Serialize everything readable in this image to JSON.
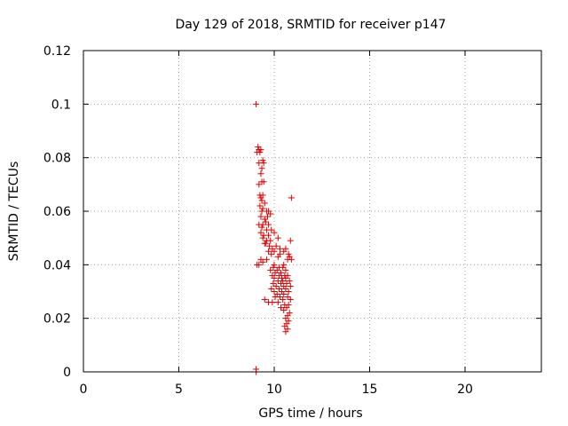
{
  "chart_data": {
    "type": "scatter",
    "title": "Day 129 of 2018, SRMTID for receiver p147",
    "xlabel": "GPS time / hours",
    "ylabel": "SRMTID / TECUs",
    "xlim": [
      0,
      24
    ],
    "ylim": [
      0,
      0.12
    ],
    "xticks": [
      0,
      5,
      10,
      15,
      20
    ],
    "xtick_labels": [
      "0",
      "5",
      "10",
      "15",
      "20"
    ],
    "yticks": [
      0,
      0.02,
      0.04,
      0.06,
      0.08,
      0.1,
      0.12
    ],
    "ytick_labels": [
      "0",
      "0.02",
      "0.04",
      "0.06",
      "0.08",
      "0.1",
      "0.12"
    ],
    "grid": true,
    "marker": "plus",
    "marker_color": "#e00000",
    "series": [
      {
        "name": "SRMTID",
        "points": [
          [
            9.05,
            0.1
          ],
          [
            9.15,
            0.084
          ],
          [
            9.2,
            0.083
          ],
          [
            9.3,
            0.083
          ],
          [
            9.25,
            0.082
          ],
          [
            9.1,
            0.082
          ],
          [
            9.4,
            0.079
          ],
          [
            9.2,
            0.078
          ],
          [
            9.45,
            0.078
          ],
          [
            9.35,
            0.076
          ],
          [
            9.3,
            0.074
          ],
          [
            9.35,
            0.071
          ],
          [
            9.45,
            0.071
          ],
          [
            9.2,
            0.07
          ],
          [
            9.25,
            0.066
          ],
          [
            9.4,
            0.066
          ],
          [
            9.3,
            0.065
          ],
          [
            9.35,
            0.064
          ],
          [
            9.5,
            0.063
          ],
          [
            9.25,
            0.062
          ],
          [
            9.4,
            0.061
          ],
          [
            9.35,
            0.06
          ],
          [
            9.6,
            0.06
          ],
          [
            9.7,
            0.06
          ],
          [
            9.8,
            0.059
          ],
          [
            9.65,
            0.058
          ],
          [
            9.3,
            0.058
          ],
          [
            9.5,
            0.057
          ],
          [
            9.55,
            0.056
          ],
          [
            9.2,
            0.055
          ],
          [
            9.4,
            0.055
          ],
          [
            9.7,
            0.055
          ],
          [
            9.35,
            0.054
          ],
          [
            9.6,
            0.053
          ],
          [
            9.85,
            0.053
          ],
          [
            10.0,
            0.052
          ],
          [
            9.3,
            0.052
          ],
          [
            9.45,
            0.051
          ],
          [
            9.7,
            0.051
          ],
          [
            10.2,
            0.05
          ],
          [
            9.4,
            0.05
          ],
          [
            9.6,
            0.049
          ],
          [
            9.8,
            0.049
          ],
          [
            10.85,
            0.049
          ],
          [
            9.5,
            0.048
          ],
          [
            9.55,
            0.048
          ],
          [
            9.75,
            0.047
          ],
          [
            10.1,
            0.047
          ],
          [
            9.9,
            0.046
          ],
          [
            10.3,
            0.046
          ],
          [
            10.6,
            0.046
          ],
          [
            9.7,
            0.045
          ],
          [
            10.0,
            0.045
          ],
          [
            10.5,
            0.045
          ],
          [
            9.85,
            0.044
          ],
          [
            10.3,
            0.044
          ],
          [
            10.75,
            0.044
          ],
          [
            10.8,
            0.043
          ],
          [
            10.2,
            0.043
          ],
          [
            9.6,
            0.042
          ],
          [
            9.3,
            0.042
          ],
          [
            10.7,
            0.042
          ],
          [
            10.9,
            0.042
          ],
          [
            9.4,
            0.041
          ],
          [
            9.1,
            0.04
          ],
          [
            9.2,
            0.04
          ],
          [
            10.5,
            0.04
          ],
          [
            10.0,
            0.04
          ],
          [
            10.25,
            0.039
          ],
          [
            10.45,
            0.039
          ],
          [
            9.95,
            0.039
          ],
          [
            9.8,
            0.038
          ],
          [
            10.15,
            0.038
          ],
          [
            10.6,
            0.038
          ],
          [
            10.35,
            0.037
          ],
          [
            10.05,
            0.037
          ],
          [
            10.55,
            0.036
          ],
          [
            9.9,
            0.036
          ],
          [
            10.25,
            0.036
          ],
          [
            10.7,
            0.036
          ],
          [
            10.4,
            0.035
          ],
          [
            10.0,
            0.035
          ],
          [
            10.6,
            0.035
          ],
          [
            10.2,
            0.034
          ],
          [
            10.45,
            0.034
          ],
          [
            10.8,
            0.034
          ],
          [
            9.95,
            0.033
          ],
          [
            10.35,
            0.033
          ],
          [
            10.65,
            0.033
          ],
          [
            10.1,
            0.032
          ],
          [
            10.5,
            0.032
          ],
          [
            10.85,
            0.032
          ],
          [
            9.85,
            0.031
          ],
          [
            10.25,
            0.031
          ],
          [
            10.6,
            0.031
          ],
          [
            10.0,
            0.03
          ],
          [
            10.4,
            0.03
          ],
          [
            10.75,
            0.03
          ],
          [
            10.15,
            0.029
          ],
          [
            10.5,
            0.029
          ],
          [
            10.3,
            0.028
          ],
          [
            10.7,
            0.028
          ],
          [
            10.05,
            0.028
          ],
          [
            10.45,
            0.027
          ],
          [
            10.85,
            0.027
          ],
          [
            9.5,
            0.027
          ],
          [
            9.7,
            0.026
          ],
          [
            9.9,
            0.026
          ],
          [
            10.2,
            0.026
          ],
          [
            10.55,
            0.025
          ],
          [
            10.75,
            0.025
          ],
          [
            10.35,
            0.024
          ],
          [
            10.65,
            0.024
          ],
          [
            10.5,
            0.023
          ],
          [
            10.8,
            0.022
          ],
          [
            10.7,
            0.021
          ],
          [
            10.6,
            0.02
          ],
          [
            10.75,
            0.019
          ],
          [
            10.65,
            0.018
          ],
          [
            10.55,
            0.017
          ],
          [
            10.7,
            0.016
          ],
          [
            10.6,
            0.015
          ],
          [
            10.9,
            0.065
          ],
          [
            9.05,
            0.001
          ],
          [
            9.05,
            0.0
          ]
        ]
      }
    ]
  }
}
